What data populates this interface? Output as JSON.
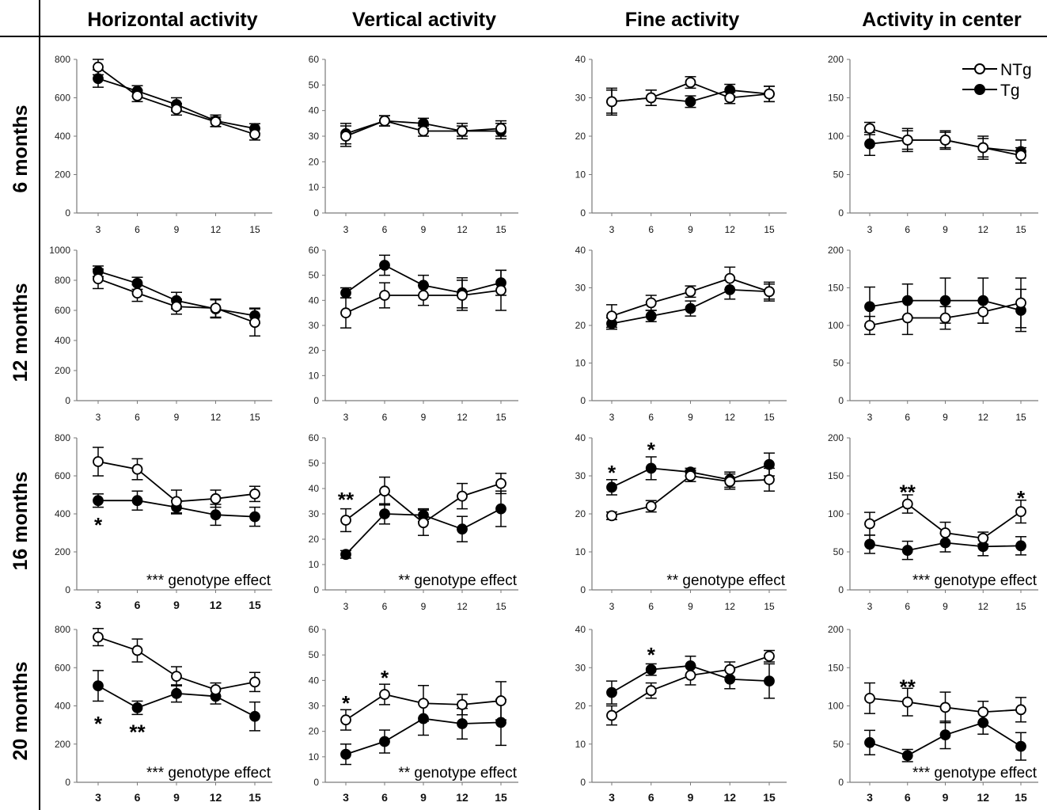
{
  "legend": {
    "entries": [
      {
        "name": "NTg",
        "marker": "open-circle"
      },
      {
        "name": "Tg",
        "marker": "filled-circle"
      }
    ],
    "position": "top-right"
  },
  "col_titles": [
    "Horizontal activity",
    "Vertical activity",
    "Fine activity",
    "Activity in center"
  ],
  "row_titles": [
    "6 months",
    "12 months",
    "16 months",
    "20 months"
  ],
  "colors": {
    "line": "#000000",
    "open_fill": "#ffffff",
    "filled": "#000000",
    "axis": "#7a7a7a"
  },
  "chart_data": [
    {
      "type": "line",
      "ylim": [
        0,
        800
      ],
      "yticks": [
        0,
        200,
        400,
        600,
        800
      ],
      "x": [
        3,
        6,
        9,
        12,
        15
      ],
      "bold_ticks": false,
      "note": "",
      "series": [
        {
          "name": "NTg",
          "values": [
            760,
            610,
            540,
            475,
            410
          ],
          "err": [
            40,
            30,
            30,
            25,
            30
          ]
        },
        {
          "name": "Tg",
          "values": [
            700,
            635,
            565,
            480,
            440
          ],
          "err": [
            45,
            28,
            35,
            30,
            25
          ]
        }
      ],
      "stars": []
    },
    {
      "type": "line",
      "ylim": [
        0,
        60
      ],
      "yticks": [
        0,
        10,
        20,
        30,
        40,
        50,
        60
      ],
      "x": [
        3,
        6,
        9,
        12,
        15
      ],
      "bold_ticks": false,
      "note": "",
      "series": [
        {
          "name": "NTg",
          "values": [
            30,
            36,
            32,
            32,
            33
          ],
          "err": [
            4,
            2,
            2,
            2,
            3
          ]
        },
        {
          "name": "Tg",
          "values": [
            31,
            36,
            35,
            32,
            32
          ],
          "err": [
            4,
            2,
            2,
            3,
            3
          ]
        }
      ],
      "stars": []
    },
    {
      "type": "line",
      "ylim": [
        0,
        40
      ],
      "yticks": [
        0,
        10,
        20,
        30,
        40
      ],
      "x": [
        3,
        6,
        9,
        12,
        15
      ],
      "bold_ticks": false,
      "note": "",
      "series": [
        {
          "name": "NTg",
          "values": [
            29,
            30,
            34,
            30,
            31
          ],
          "err": [
            3,
            2,
            1.5,
            1.5,
            2
          ]
        },
        {
          "name": "Tg",
          "values": [
            29,
            30,
            29,
            32,
            31
          ],
          "err": [
            3.5,
            2,
            1.5,
            1.5,
            2
          ]
        }
      ],
      "stars": []
    },
    {
      "type": "line",
      "ylim": [
        0,
        200
      ],
      "yticks": [
        0,
        50,
        100,
        150,
        200
      ],
      "x": [
        3,
        6,
        9,
        12,
        15
      ],
      "bold_ticks": false,
      "note": "",
      "series": [
        {
          "name": "NTg",
          "values": [
            110,
            95,
            95,
            85,
            75
          ],
          "err": [
            8,
            12,
            10,
            12,
            10
          ]
        },
        {
          "name": "Tg",
          "values": [
            90,
            95,
            95,
            85,
            80
          ],
          "err": [
            15,
            15,
            12,
            15,
            15
          ]
        }
      ],
      "stars": []
    },
    {
      "type": "line",
      "ylim": [
        0,
        1000
      ],
      "yticks": [
        0,
        200,
        400,
        600,
        800,
        1000
      ],
      "x": [
        3,
        6,
        9,
        12,
        15
      ],
      "bold_ticks": false,
      "note": "",
      "series": [
        {
          "name": "NTg",
          "values": [
            810,
            715,
            625,
            615,
            520
          ],
          "err": [
            65,
            55,
            50,
            60,
            90
          ]
        },
        {
          "name": "Tg",
          "values": [
            860,
            780,
            665,
            610,
            565
          ],
          "err": [
            35,
            40,
            55,
            60,
            50
          ]
        }
      ],
      "stars": []
    },
    {
      "type": "line",
      "ylim": [
        0,
        60
      ],
      "yticks": [
        0,
        10,
        20,
        30,
        40,
        50,
        60
      ],
      "x": [
        3,
        6,
        9,
        12,
        15
      ],
      "bold_ticks": false,
      "note": "",
      "series": [
        {
          "name": "NTg",
          "values": [
            35,
            42,
            42,
            42,
            44
          ],
          "err": [
            6,
            5,
            4,
            6,
            8
          ]
        },
        {
          "name": "Tg",
          "values": [
            43,
            54,
            46,
            43,
            47
          ],
          "err": [
            2,
            4,
            4,
            6,
            5
          ]
        }
      ],
      "stars": []
    },
    {
      "type": "line",
      "ylim": [
        0,
        40
      ],
      "yticks": [
        0,
        10,
        20,
        30,
        40
      ],
      "x": [
        3,
        6,
        9,
        12,
        15
      ],
      "bold_ticks": false,
      "note": "",
      "series": [
        {
          "name": "NTg",
          "values": [
            22.5,
            26,
            29,
            32.5,
            29
          ],
          "err": [
            3,
            2,
            1.5,
            3,
            2
          ]
        },
        {
          "name": "Tg",
          "values": [
            20.5,
            22.5,
            24.5,
            29.5,
            29
          ],
          "err": [
            1.5,
            1.5,
            2,
            2.5,
            2.5
          ]
        }
      ],
      "stars": []
    },
    {
      "type": "line",
      "ylim": [
        0,
        200
      ],
      "yticks": [
        0,
        50,
        100,
        150,
        200
      ],
      "x": [
        3,
        6,
        9,
        12,
        15
      ],
      "bold_ticks": false,
      "note": "",
      "series": [
        {
          "name": "NTg",
          "values": [
            100,
            110,
            110,
            118,
            130
          ],
          "err": [
            12,
            22,
            15,
            15,
            33
          ]
        },
        {
          "name": "Tg",
          "values": [
            125,
            133,
            133,
            133,
            120
          ],
          "err": [
            26,
            22,
            30,
            30,
            28
          ]
        }
      ],
      "stars": []
    },
    {
      "type": "line",
      "ylim": [
        0,
        800
      ],
      "yticks": [
        0,
        200,
        400,
        600,
        800
      ],
      "x": [
        3,
        6,
        9,
        12,
        15
      ],
      "bold_ticks": true,
      "note": "*** genotype effect",
      "series": [
        {
          "name": "NTg",
          "values": [
            675,
            635,
            465,
            480,
            505
          ],
          "err": [
            75,
            55,
            60,
            45,
            40
          ]
        },
        {
          "name": "Tg",
          "values": [
            470,
            470,
            435,
            395,
            385
          ],
          "err": [
            35,
            50,
            35,
            55,
            50
          ]
        }
      ],
      "stars": [
        {
          "x": 3,
          "y": 355,
          "text": "*"
        }
      ]
    },
    {
      "type": "line",
      "ylim": [
        0,
        60
      ],
      "yticks": [
        0,
        10,
        20,
        30,
        40,
        50,
        60
      ],
      "x": [
        3,
        6,
        9,
        12,
        15
      ],
      "bold_ticks": false,
      "note": "** genotype effect",
      "series": [
        {
          "name": "NTg",
          "values": [
            27.5,
            39,
            26.5,
            37,
            42
          ],
          "err": [
            4.5,
            5.5,
            5,
            5,
            4
          ]
        },
        {
          "name": "Tg",
          "values": [
            14,
            30,
            29.5,
            24,
            32
          ],
          "err": [
            1.5,
            4,
            2.5,
            5,
            7
          ]
        }
      ],
      "stars": [
        {
          "x": 3,
          "y": 36.5,
          "text": "**"
        }
      ]
    },
    {
      "type": "line",
      "ylim": [
        0,
        40
      ],
      "yticks": [
        0,
        10,
        20,
        30,
        40
      ],
      "x": [
        3,
        6,
        9,
        12,
        15
      ],
      "bold_ticks": false,
      "note": "** genotype effect",
      "series": [
        {
          "name": "NTg",
          "values": [
            19.5,
            22,
            30,
            28.5,
            29
          ],
          "err": [
            1,
            1.5,
            1.5,
            2,
            3
          ]
        },
        {
          "name": "Tg",
          "values": [
            27,
            32,
            31,
            29,
            33
          ],
          "err": [
            2,
            3,
            1,
            2,
            3
          ]
        }
      ],
      "stars": [
        {
          "x": 3,
          "y": 31.5,
          "text": "*"
        },
        {
          "x": 6,
          "y": 37.5,
          "text": "*"
        }
      ]
    },
    {
      "type": "line",
      "ylim": [
        0,
        200
      ],
      "yticks": [
        0,
        50,
        100,
        150,
        200
      ],
      "x": [
        3,
        6,
        9,
        12,
        15
      ],
      "bold_ticks": false,
      "note": "*** genotype effect",
      "series": [
        {
          "name": "NTg",
          "values": [
            87,
            113,
            75,
            68,
            103
          ],
          "err": [
            15,
            12,
            14,
            8,
            15
          ]
        },
        {
          "name": "Tg",
          "values": [
            60,
            52,
            62,
            57,
            58
          ],
          "err": [
            12,
            12,
            12,
            12,
            12
          ]
        }
      ],
      "stars": [
        {
          "x": 6,
          "y": 132,
          "text": "**"
        },
        {
          "x": 15,
          "y": 124,
          "text": "*"
        }
      ]
    },
    {
      "type": "line",
      "ylim": [
        0,
        800
      ],
      "yticks": [
        0,
        200,
        400,
        600,
        800
      ],
      "x": [
        3,
        6,
        9,
        12,
        15
      ],
      "bold_ticks": true,
      "note": "*** genotype effect",
      "series": [
        {
          "name": "NTg",
          "values": [
            760,
            690,
            555,
            485,
            525
          ],
          "err": [
            45,
            60,
            50,
            35,
            50
          ]
        },
        {
          "name": "Tg",
          "values": [
            505,
            390,
            465,
            450,
            345
          ],
          "err": [
            80,
            35,
            45,
            40,
            75
          ]
        }
      ],
      "stars": [
        {
          "x": 3,
          "y": 320,
          "text": "*"
        },
        {
          "x": 6,
          "y": 275,
          "text": "**"
        }
      ]
    },
    {
      "type": "line",
      "ylim": [
        0,
        60
      ],
      "yticks": [
        0,
        10,
        20,
        30,
        40,
        50,
        60
      ],
      "x": [
        3,
        6,
        9,
        12,
        15
      ],
      "bold_ticks": true,
      "note": "** genotype effect",
      "series": [
        {
          "name": "NTg",
          "values": [
            24.5,
            34.5,
            31,
            30.5,
            32
          ],
          "err": [
            4,
            4,
            7,
            4,
            7.5
          ]
        },
        {
          "name": "Tg",
          "values": [
            11,
            16,
            25,
            23,
            23.5
          ],
          "err": [
            4,
            4.5,
            6.5,
            6,
            9
          ]
        }
      ],
      "stars": [
        {
          "x": 3,
          "y": 32,
          "text": "*"
        },
        {
          "x": 6,
          "y": 42,
          "text": "*"
        }
      ]
    },
    {
      "type": "line",
      "ylim": [
        0,
        40
      ],
      "yticks": [
        0,
        10,
        20,
        30,
        40
      ],
      "x": [
        3,
        6,
        9,
        12,
        15
      ],
      "bold_ticks": true,
      "note": "",
      "series": [
        {
          "name": "NTg",
          "values": [
            17.5,
            24,
            28,
            29.5,
            33
          ],
          "err": [
            2.5,
            2,
            2.5,
            2,
            1.5
          ]
        },
        {
          "name": "Tg",
          "values": [
            23.5,
            29.5,
            30.5,
            27,
            26.5
          ],
          "err": [
            3,
            1.5,
            2.5,
            2.5,
            4.5
          ]
        }
      ],
      "stars": [
        {
          "x": 6,
          "y": 34,
          "text": "*"
        }
      ]
    },
    {
      "type": "line",
      "ylim": [
        0,
        200
      ],
      "yticks": [
        0,
        50,
        100,
        150,
        200
      ],
      "x": [
        3,
        6,
        9,
        12,
        15
      ],
      "bold_ticks": true,
      "note": "*** genotype effect",
      "series": [
        {
          "name": "NTg",
          "values": [
            110,
            105,
            98,
            92,
            95
          ],
          "err": [
            20,
            18,
            20,
            14,
            16
          ]
        },
        {
          "name": "Tg",
          "values": [
            52,
            35,
            62,
            78,
            47
          ],
          "err": [
            16,
            8,
            18,
            15,
            18
          ]
        }
      ],
      "stars": [
        {
          "x": 6,
          "y": 128,
          "text": "**"
        }
      ]
    }
  ]
}
